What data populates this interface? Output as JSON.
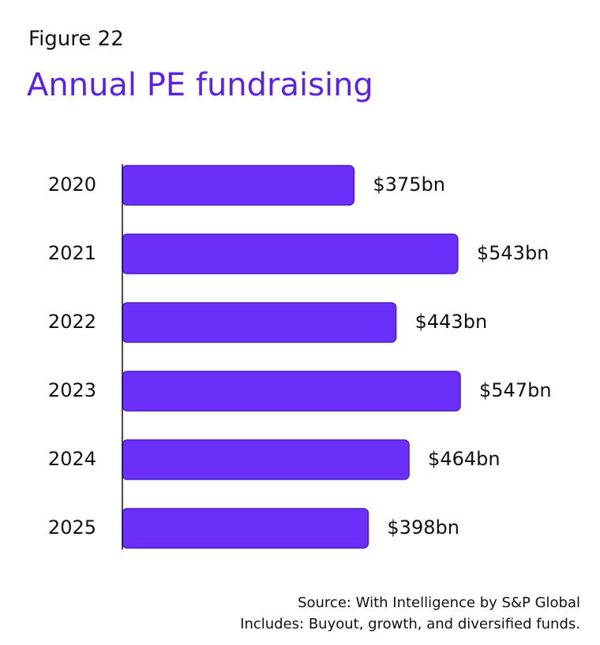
{
  "chart_data": {
    "type": "bar",
    "orientation": "horizontal",
    "label": "Figure 22",
    "title": "Annual PE fundraising",
    "categories": [
      "2020",
      "2021",
      "2022",
      "2023",
      "2024",
      "2025"
    ],
    "values": [
      375,
      543,
      443,
      547,
      464,
      398
    ],
    "value_labels": [
      "$375bn",
      "$543bn",
      "$443bn",
      "$547bn",
      "$464bn",
      "$398bn"
    ],
    "color": "#6a2ff8",
    "notes": [
      "Source: With Intelligence by S&P Global",
      "Includes: Buyout, growth, and diversified funds."
    ]
  }
}
